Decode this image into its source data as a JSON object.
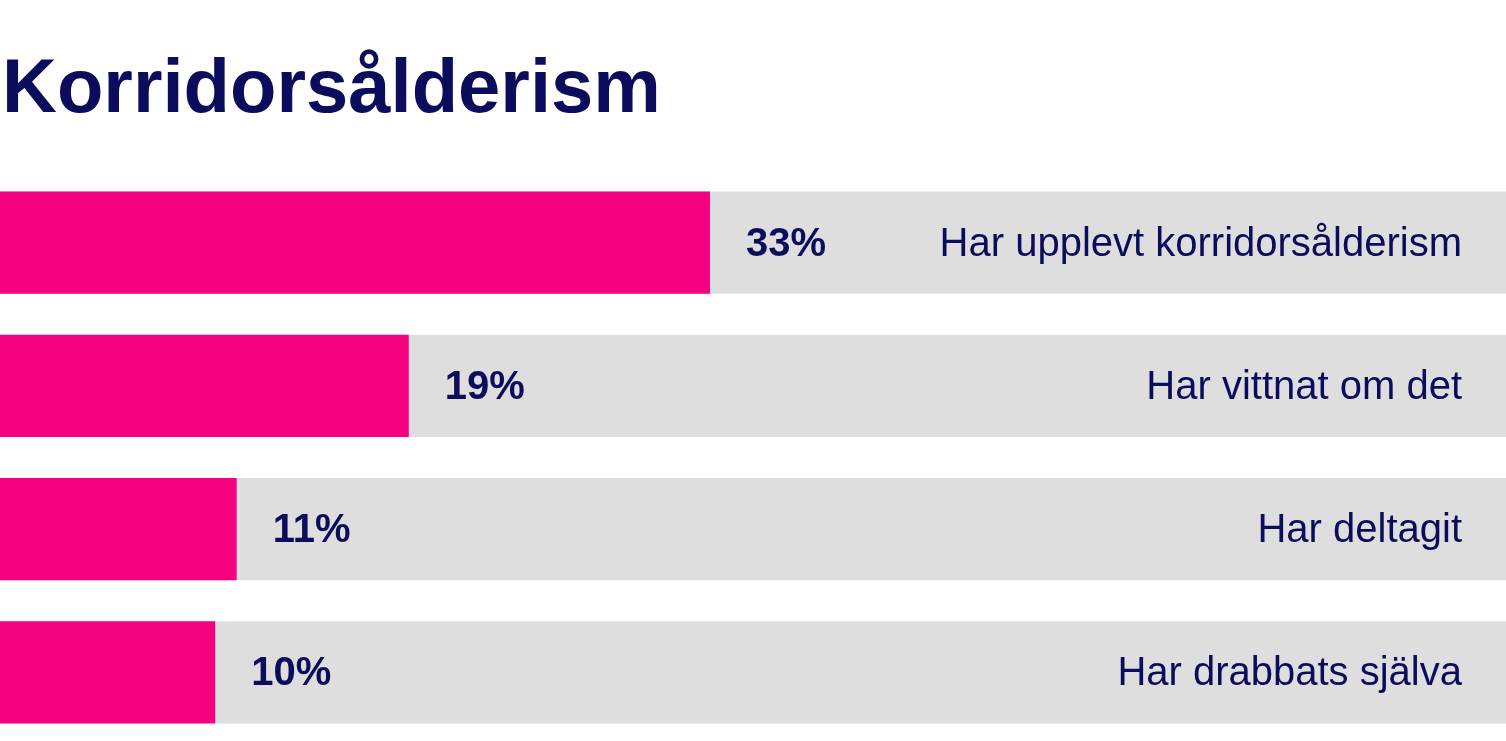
{
  "chart_data": {
    "type": "bar",
    "orientation": "horizontal",
    "title": "Korridorsålderism",
    "categories": [
      "Har upplevt korridorsålderism",
      "Har vittnat om det",
      "Har deltagit",
      "Har drabbats själva"
    ],
    "values": [
      33,
      19,
      11,
      10
    ],
    "color": "#f5007f",
    "value_labels": [
      "33%",
      "19%",
      "11%",
      "10%"
    ],
    "legend": false
  }
}
